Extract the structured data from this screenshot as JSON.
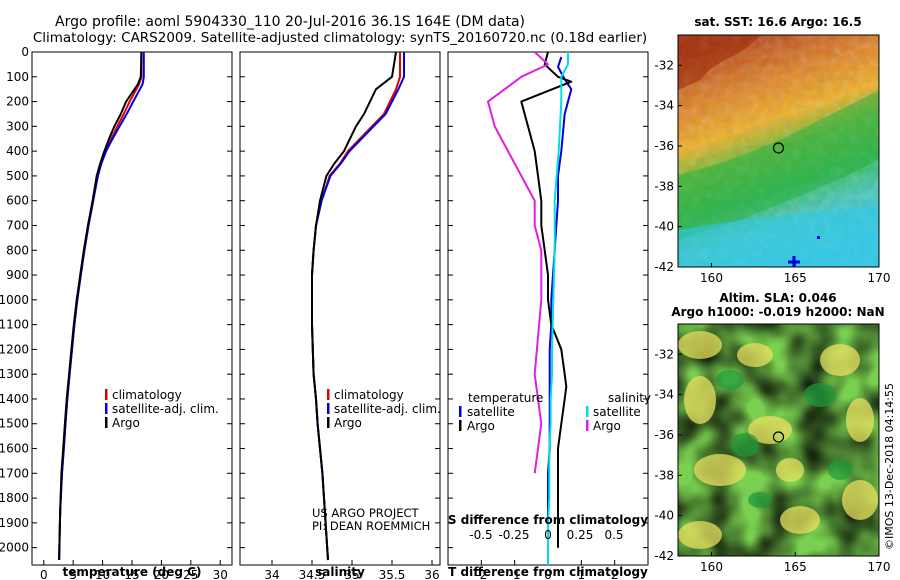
{
  "header": {
    "title_line1": "Argo profile: aoml 5904330_110 20-Jul-2016 36.1S 164E (DM data)",
    "title_line2": "Climatology: CARS2009. Satellite-adjusted climatology: synTS_20160720.nc (0.18d earlier)"
  },
  "colors": {
    "climatology": "#e00000",
    "satellite": "#0000e0",
    "argo": "#000000",
    "salinity_sat": "#00e0e0",
    "salinity_argo": "#e020e0"
  },
  "chart_data": [
    {
      "id": "temperature",
      "type": "line",
      "xlabel": "temperature (deg C)",
      "ylabel": "",
      "xlim": [
        -2,
        32
      ],
      "ylim": [
        2070,
        0
      ],
      "xticks": [
        0,
        5,
        10,
        15,
        20,
        25,
        30
      ],
      "yticks": [
        0,
        100,
        200,
        300,
        400,
        500,
        600,
        700,
        800,
        900,
        1000,
        1100,
        1200,
        1300,
        1400,
        1500,
        1600,
        1700,
        1800,
        1900,
        2000
      ],
      "legend": [
        "climatology",
        "satellite-adj. clim.",
        "Argo"
      ],
      "series": [
        {
          "name": "climatology",
          "color": "#e00000",
          "x": [
            16.6,
            16.6,
            16.2,
            14.6,
            13.6,
            12.5,
            11.5,
            10.4,
            9.7,
            9.1,
            8.4,
            7.6,
            6.9,
            6.3,
            5.7,
            5.2,
            4.8,
            4.4,
            4.0,
            3.7,
            3.4,
            3.1,
            2.8,
            2.6
          ],
          "y": [
            0,
            100,
            130,
            200,
            250,
            300,
            350,
            400,
            450,
            500,
            600,
            700,
            800,
            900,
            1000,
            1100,
            1200,
            1300,
            1400,
            1500,
            1600,
            1700,
            1850,
            2050
          ]
        },
        {
          "name": "satellite-adj. clim.",
          "color": "#0000e0",
          "x": [
            17.0,
            17.0,
            16.8,
            15.2,
            14.1,
            12.9,
            11.7,
            10.6,
            9.8,
            9.2,
            8.4,
            7.6,
            6.9,
            6.3,
            5.7,
            5.2,
            4.8,
            4.4,
            4.0,
            3.7,
            3.4,
            3.1,
            2.8,
            2.6
          ],
          "y": [
            0,
            100,
            130,
            200,
            250,
            300,
            350,
            400,
            450,
            500,
            600,
            700,
            800,
            900,
            1000,
            1100,
            1200,
            1300,
            1400,
            1500,
            1600,
            1700,
            1850,
            2050
          ]
        },
        {
          "name": "Argo",
          "color": "#000000",
          "x": [
            16.6,
            16.5,
            16.0,
            14.0,
            13.1,
            12.0,
            11.1,
            10.3,
            9.6,
            9.0,
            8.3,
            7.5,
            6.8,
            6.2,
            5.6,
            5.1,
            4.7,
            4.3,
            3.9,
            3.6,
            3.3,
            3.0,
            2.8,
            2.6
          ],
          "y": [
            0,
            100,
            130,
            200,
            250,
            300,
            350,
            400,
            450,
            500,
            600,
            700,
            800,
            900,
            1000,
            1100,
            1200,
            1300,
            1400,
            1500,
            1600,
            1700,
            1850,
            2050
          ]
        }
      ]
    },
    {
      "id": "salinity",
      "type": "line",
      "xlabel": "salinity",
      "ylabel": "",
      "xlim": [
        33.6,
        36.1
      ],
      "ylim": [
        2070,
        0
      ],
      "xticks": [
        34,
        34.5,
        35,
        35.5,
        36
      ],
      "xticklabels": [
        "34",
        "34.5",
        "35",
        "35.5",
        "36"
      ],
      "legend": [
        "climatology",
        "satellite-adj. clim.",
        "Argo"
      ],
      "annotation": [
        "US ARGO PROJECT",
        "PI: DEAN ROEMMICH"
      ],
      "series": [
        {
          "name": "climatology",
          "color": "#e00000",
          "x": [
            35.6,
            35.6,
            35.55,
            35.4,
            35.25,
            35.1,
            34.95,
            34.85,
            34.72,
            34.62,
            34.55,
            34.52,
            34.5,
            34.5,
            34.5,
            34.51,
            34.52,
            34.55,
            34.57,
            34.6,
            34.63,
            34.65,
            34.67,
            34.69,
            34.7
          ],
          "y": [
            0,
            100,
            150,
            250,
            300,
            350,
            400,
            450,
            500,
            600,
            700,
            800,
            900,
            1000,
            1100,
            1200,
            1300,
            1400,
            1500,
            1600,
            1700,
            1800,
            1900,
            2000,
            2050
          ]
        },
        {
          "name": "satellite-adj. clim.",
          "color": "#0000e0",
          "x": [
            35.65,
            35.65,
            35.58,
            35.42,
            35.27,
            35.12,
            34.97,
            34.86,
            34.73,
            34.62,
            34.55,
            34.52,
            34.5,
            34.5,
            34.5,
            34.51,
            34.52,
            34.55,
            34.57,
            34.6,
            34.63,
            34.65,
            34.67,
            34.69,
            34.7
          ],
          "y": [
            0,
            100,
            150,
            250,
            300,
            350,
            400,
            450,
            500,
            600,
            700,
            800,
            900,
            1000,
            1100,
            1200,
            1300,
            1400,
            1500,
            1600,
            1700,
            1800,
            1900,
            2000,
            2050
          ]
        },
        {
          "name": "Argo",
          "color": "#000000",
          "x": [
            35.55,
            35.5,
            35.3,
            35.15,
            35.05,
            34.9,
            34.78,
            34.68,
            34.6,
            34.55,
            34.52,
            34.5,
            34.5,
            34.5,
            34.51,
            34.52,
            34.55,
            34.57,
            34.6,
            34.63,
            34.65,
            34.67,
            34.69,
            34.7
          ],
          "y": [
            0,
            100,
            150,
            250,
            300,
            400,
            450,
            500,
            600,
            700,
            800,
            900,
            1000,
            1100,
            1200,
            1300,
            1400,
            1500,
            1600,
            1700,
            1800,
            1900,
            2000,
            2050
          ]
        }
      ]
    },
    {
      "id": "difference",
      "type": "line",
      "xlabel": "T difference from climatology",
      "xlabel_top": "S difference from climatology",
      "ylabel": "",
      "xlim": [
        -3,
        3
      ],
      "ylim": [
        2070,
        0
      ],
      "xticks": [
        -2,
        -1,
        0,
        1,
        2
      ],
      "top_xticks": [
        -0.5,
        -0.25,
        0,
        0.25,
        0.5
      ],
      "top_xticklabels": [
        "-0.5",
        "-0.25",
        "0",
        "0.25",
        "0.5"
      ],
      "legend_left_title": "temperature",
      "legend_right_title": "salinity",
      "legend_left": [
        "satellite",
        "Argo"
      ],
      "legend_right": [
        "satellite",
        "Argo"
      ],
      "series": [
        {
          "name": "T satellite",
          "color": "#0000e0",
          "x": [
            0.4,
            0.3,
            0.5,
            0.7,
            0.5,
            0.4,
            0.3,
            0.3,
            0.25,
            0.2,
            0.15,
            0.1,
            0.1,
            0.05,
            0.05,
            0.05,
            0.05,
            0.05,
            0.0,
            0.0,
            0.0,
            0.0,
            0.0,
            0.0
          ],
          "y": [
            20,
            60,
            110,
            150,
            250,
            400,
            500,
            600,
            700,
            800,
            900,
            1000,
            1100,
            1200,
            1300,
            1400,
            1500,
            1600,
            1700,
            1800,
            1900,
            2000,
            2050,
            2070
          ]
        },
        {
          "name": "T Argo",
          "color": "#000000",
          "x": [
            0.0,
            -0.1,
            0.3,
            0.7,
            -0.8,
            -0.6,
            -0.4,
            -0.3,
            -0.2,
            -0.2,
            -0.1,
            0.0,
            0.0,
            0.1,
            0.4,
            0.5,
            0.55,
            0.5,
            0.4,
            0.3,
            0.3,
            0.3,
            0.3,
            0.3,
            0.3
          ],
          "y": [
            0,
            50,
            100,
            120,
            200,
            300,
            400,
            500,
            600,
            700,
            800,
            900,
            1000,
            1100,
            1200,
            1300,
            1350,
            1400,
            1500,
            1600,
            1650,
            1700,
            1800,
            1900,
            2000
          ]
        },
        {
          "name": "S satellite",
          "color": "#00e0e0",
          "x": [
            0.15,
            0.15,
            0.1,
            0.1,
            0.08,
            0.05,
            0.05,
            0.04,
            0.03,
            0.03,
            0.02,
            0.02,
            0.01,
            0.01,
            0.0,
            0.0
          ],
          "y": [
            0,
            50,
            100,
            200,
            400,
            600,
            800,
            1000,
            1200,
            1300,
            1400,
            1500,
            1600,
            1800,
            1900,
            2070
          ]
        },
        {
          "name": "S Argo",
          "color": "#e020e0",
          "x": [
            -0.1,
            0.0,
            -0.2,
            -0.45,
            -0.4,
            -0.3,
            -0.2,
            -0.1,
            -0.1,
            -0.05,
            -0.05,
            -0.05,
            -0.1,
            -0.05,
            -0.1
          ],
          "y": [
            0,
            50,
            100,
            200,
            300,
            400,
            500,
            600,
            700,
            800,
            900,
            1000,
            1300,
            1500,
            1700
          ]
        }
      ]
    },
    {
      "id": "sst_map",
      "type": "heatmap",
      "title": "sat. SST: 16.6 Argo: 16.5",
      "xlim": [
        158,
        170
      ],
      "ylim": [
        -42,
        -30.5
      ],
      "xticks": [
        160,
        165,
        170
      ],
      "yticks": [
        -32,
        -34,
        -36,
        -38,
        -40,
        -42
      ],
      "marker": {
        "lon": 164,
        "lat": -36.1
      }
    },
    {
      "id": "sla_map",
      "type": "heatmap",
      "title_line1": "Altim. SLA: 0.046",
      "title_line2": "Argo h1000: -0.019 h2000: NaN",
      "xlim": [
        158,
        170
      ],
      "ylim": [
        -42,
        -30.5
      ],
      "xticks": [
        160,
        165,
        170
      ],
      "yticks": [
        -32,
        -34,
        -36,
        -38,
        -40,
        -42
      ],
      "marker": {
        "lon": 164,
        "lat": -36.1
      }
    }
  ],
  "footer": {
    "credit": "©IMOS 13-Dec-2018 04:14:55"
  }
}
